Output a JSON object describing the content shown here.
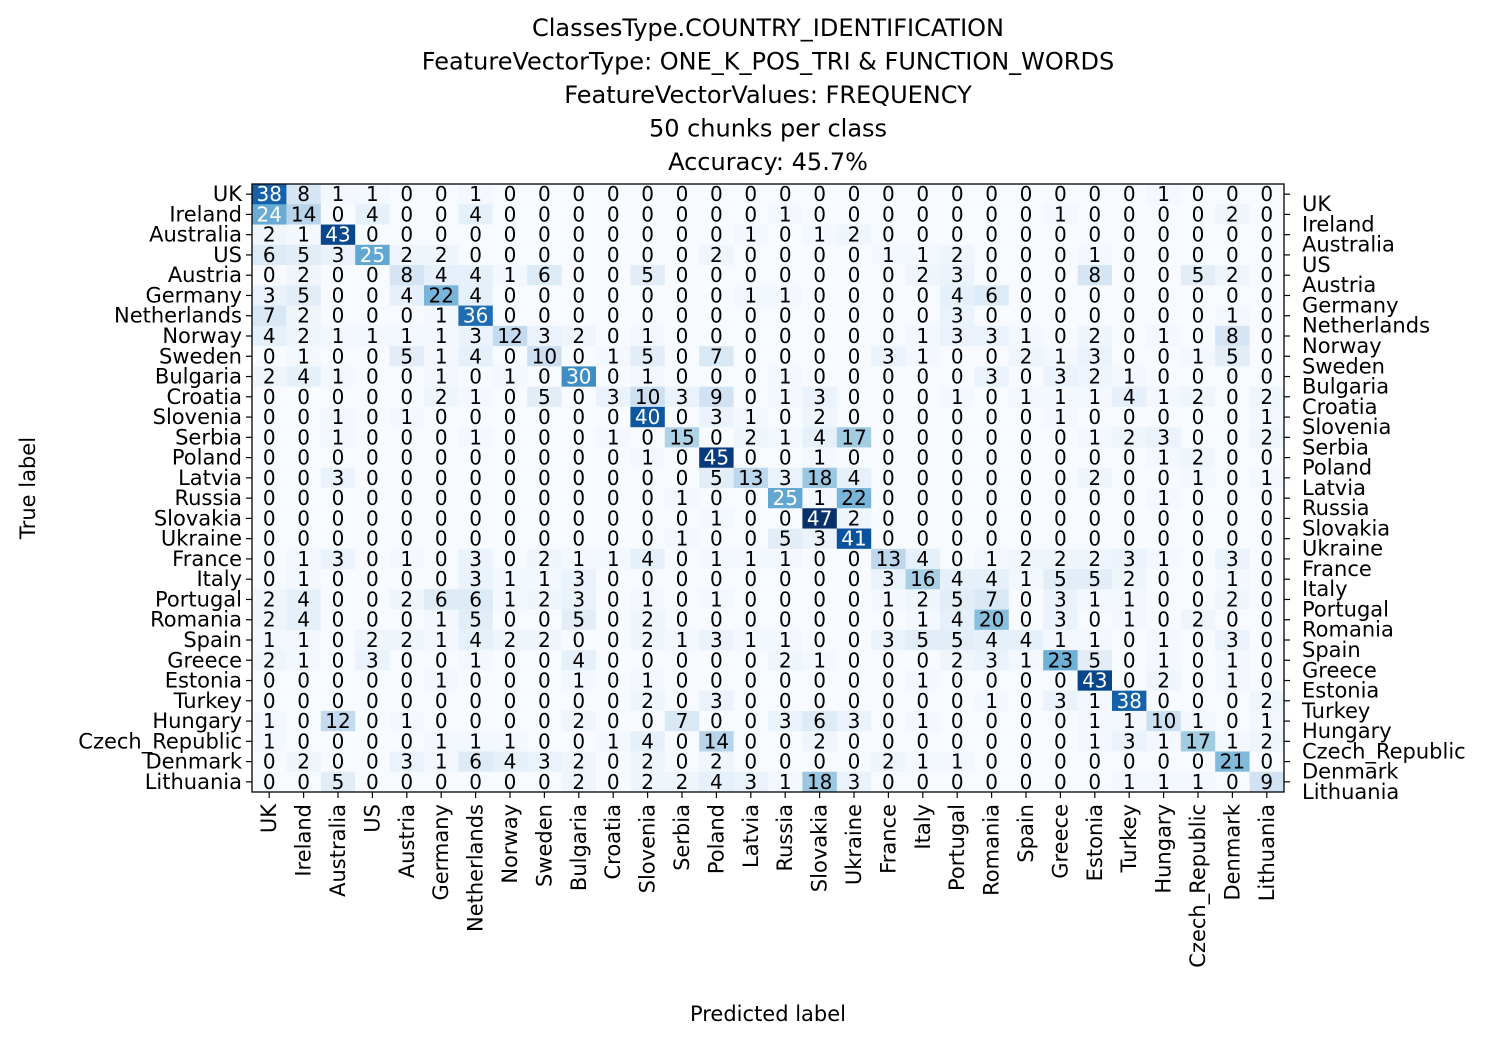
{
  "chart_data": {
    "type": "heatmap",
    "title_lines": [
      "ClassesType.COUNTRY_IDENTIFICATION",
      "FeatureVectorType: ONE_K_POS_TRI & FUNCTION_WORDS",
      "FeatureVectorValues: FREQUENCY",
      "50 chunks per class",
      "Accuracy: 45.7%"
    ],
    "xlabel": "Predicted label",
    "ylabel": "True label",
    "colormap": "Blues",
    "value_range": [
      0,
      47
    ],
    "labels": [
      "UK",
      "Ireland",
      "Australia",
      "US",
      "Austria",
      "Germany",
      "Netherlands",
      "Norway",
      "Sweden",
      "Bulgaria",
      "Croatia",
      "Slovenia",
      "Serbia",
      "Poland",
      "Latvia",
      "Russia",
      "Slovakia",
      "Ukraine",
      "France",
      "Italy",
      "Portugal",
      "Romania",
      "Spain",
      "Greece",
      "Estonia",
      "Turkey",
      "Hungary",
      "Czech_Republic",
      "Denmark",
      "Lithuania"
    ],
    "matrix": [
      [
        38,
        8,
        1,
        1,
        0,
        0,
        1,
        0,
        0,
        0,
        0,
        0,
        0,
        0,
        0,
        0,
        0,
        0,
        0,
        0,
        0,
        0,
        0,
        0,
        0,
        0,
        1,
        0,
        0,
        0
      ],
      [
        24,
        14,
        0,
        4,
        0,
        0,
        4,
        0,
        0,
        0,
        0,
        0,
        0,
        0,
        0,
        1,
        0,
        0,
        0,
        0,
        0,
        0,
        0,
        1,
        0,
        0,
        0,
        0,
        2,
        0
      ],
      [
        2,
        1,
        43,
        0,
        0,
        0,
        0,
        0,
        0,
        0,
        0,
        0,
        0,
        0,
        1,
        0,
        1,
        2,
        0,
        0,
        0,
        0,
        0,
        0,
        0,
        0,
        0,
        0,
        0,
        0
      ],
      [
        6,
        5,
        3,
        25,
        2,
        2,
        0,
        0,
        0,
        0,
        0,
        0,
        0,
        2,
        0,
        0,
        0,
        0,
        1,
        1,
        2,
        0,
        0,
        0,
        1,
        0,
        0,
        0,
        0,
        0
      ],
      [
        0,
        2,
        0,
        0,
        8,
        4,
        4,
        1,
        6,
        0,
        0,
        5,
        0,
        0,
        0,
        0,
        0,
        0,
        0,
        2,
        3,
        0,
        0,
        0,
        8,
        0,
        0,
        5,
        2,
        0
      ],
      [
        3,
        5,
        0,
        0,
        4,
        22,
        4,
        0,
        0,
        0,
        0,
        0,
        0,
        0,
        1,
        1,
        0,
        0,
        0,
        0,
        4,
        6,
        0,
        0,
        0,
        0,
        0,
        0,
        0,
        0
      ],
      [
        7,
        2,
        0,
        0,
        0,
        1,
        36,
        0,
        0,
        0,
        0,
        0,
        0,
        0,
        0,
        0,
        0,
        0,
        0,
        0,
        3,
        0,
        0,
        0,
        0,
        0,
        0,
        0,
        1,
        0
      ],
      [
        4,
        2,
        1,
        1,
        1,
        1,
        3,
        12,
        3,
        2,
        0,
        1,
        0,
        0,
        0,
        0,
        0,
        0,
        0,
        1,
        3,
        3,
        1,
        0,
        2,
        0,
        1,
        0,
        8,
        0
      ],
      [
        0,
        1,
        0,
        0,
        5,
        1,
        4,
        0,
        10,
        0,
        1,
        5,
        0,
        7,
        0,
        0,
        0,
        0,
        3,
        1,
        0,
        0,
        2,
        1,
        3,
        0,
        0,
        1,
        5,
        0
      ],
      [
        2,
        4,
        1,
        0,
        0,
        1,
        0,
        1,
        0,
        30,
        0,
        1,
        0,
        0,
        0,
        1,
        0,
        0,
        0,
        0,
        0,
        3,
        0,
        3,
        2,
        1,
        0,
        0,
        0,
        0
      ],
      [
        0,
        0,
        0,
        0,
        0,
        2,
        1,
        0,
        5,
        0,
        3,
        10,
        3,
        9,
        0,
        1,
        3,
        0,
        0,
        0,
        1,
        0,
        1,
        1,
        1,
        4,
        1,
        2,
        0,
        2
      ],
      [
        0,
        0,
        1,
        0,
        1,
        0,
        0,
        0,
        0,
        0,
        0,
        40,
        0,
        3,
        1,
        0,
        2,
        0,
        0,
        0,
        0,
        0,
        0,
        1,
        0,
        0,
        0,
        0,
        0,
        1
      ],
      [
        0,
        0,
        1,
        0,
        0,
        0,
        1,
        0,
        0,
        0,
        1,
        0,
        15,
        0,
        2,
        1,
        4,
        17,
        0,
        0,
        0,
        0,
        0,
        0,
        1,
        2,
        3,
        0,
        0,
        2
      ],
      [
        0,
        0,
        0,
        0,
        0,
        0,
        0,
        0,
        0,
        0,
        0,
        1,
        0,
        45,
        0,
        0,
        1,
        0,
        0,
        0,
        0,
        0,
        0,
        0,
        0,
        0,
        1,
        2,
        0,
        0
      ],
      [
        0,
        0,
        3,
        0,
        0,
        0,
        0,
        0,
        0,
        0,
        0,
        0,
        0,
        5,
        13,
        3,
        18,
        4,
        0,
        0,
        0,
        0,
        0,
        0,
        2,
        0,
        0,
        1,
        0,
        1
      ],
      [
        0,
        0,
        0,
        0,
        0,
        0,
        0,
        0,
        0,
        0,
        0,
        0,
        1,
        0,
        0,
        25,
        1,
        22,
        0,
        0,
        0,
        0,
        0,
        0,
        0,
        0,
        1,
        0,
        0,
        0
      ],
      [
        0,
        0,
        0,
        0,
        0,
        0,
        0,
        0,
        0,
        0,
        0,
        0,
        0,
        1,
        0,
        0,
        47,
        2,
        0,
        0,
        0,
        0,
        0,
        0,
        0,
        0,
        0,
        0,
        0,
        0
      ],
      [
        0,
        0,
        0,
        0,
        0,
        0,
        0,
        0,
        0,
        0,
        0,
        0,
        1,
        0,
        0,
        5,
        3,
        41,
        0,
        0,
        0,
        0,
        0,
        0,
        0,
        0,
        0,
        0,
        0,
        0
      ],
      [
        0,
        1,
        3,
        0,
        1,
        0,
        3,
        0,
        2,
        1,
        1,
        4,
        0,
        1,
        1,
        1,
        0,
        0,
        13,
        4,
        0,
        1,
        2,
        2,
        2,
        3,
        1,
        0,
        3,
        0
      ],
      [
        0,
        1,
        0,
        0,
        0,
        0,
        3,
        1,
        1,
        3,
        0,
        0,
        0,
        0,
        0,
        0,
        0,
        0,
        3,
        16,
        4,
        4,
        1,
        5,
        5,
        2,
        0,
        0,
        1,
        0
      ],
      [
        2,
        4,
        0,
        0,
        2,
        6,
        6,
        1,
        2,
        3,
        0,
        1,
        0,
        1,
        0,
        0,
        0,
        0,
        1,
        2,
        5,
        7,
        0,
        3,
        1,
        1,
        0,
        0,
        2,
        0
      ],
      [
        2,
        4,
        0,
        0,
        0,
        1,
        5,
        0,
        0,
        5,
        0,
        2,
        0,
        0,
        0,
        0,
        0,
        0,
        0,
        1,
        4,
        20,
        0,
        3,
        0,
        1,
        0,
        2,
        0,
        0
      ],
      [
        1,
        1,
        0,
        2,
        2,
        1,
        4,
        2,
        2,
        0,
        0,
        2,
        1,
        3,
        1,
        1,
        0,
        0,
        3,
        5,
        5,
        4,
        4,
        1,
        1,
        0,
        1,
        0,
        3,
        0
      ],
      [
        2,
        1,
        0,
        3,
        0,
        0,
        1,
        0,
        0,
        4,
        0,
        0,
        0,
        0,
        0,
        2,
        1,
        0,
        0,
        0,
        2,
        3,
        1,
        23,
        5,
        0,
        1,
        0,
        1,
        0
      ],
      [
        0,
        0,
        0,
        0,
        0,
        1,
        0,
        0,
        0,
        1,
        0,
        1,
        0,
        0,
        0,
        0,
        0,
        0,
        0,
        1,
        0,
        0,
        0,
        0,
        43,
        0,
        2,
        0,
        1,
        0
      ],
      [
        0,
        0,
        0,
        0,
        0,
        0,
        0,
        0,
        0,
        0,
        0,
        2,
        0,
        3,
        0,
        0,
        0,
        0,
        0,
        0,
        0,
        1,
        0,
        3,
        1,
        38,
        0,
        0,
        0,
        2
      ],
      [
        1,
        0,
        12,
        0,
        1,
        0,
        0,
        0,
        0,
        2,
        0,
        0,
        7,
        0,
        0,
        3,
        6,
        3,
        0,
        1,
        0,
        0,
        0,
        0,
        1,
        1,
        10,
        1,
        0,
        1
      ],
      [
        1,
        0,
        0,
        0,
        0,
        1,
        1,
        1,
        0,
        0,
        1,
        4,
        0,
        14,
        0,
        0,
        2,
        0,
        0,
        0,
        0,
        0,
        0,
        0,
        1,
        3,
        1,
        17,
        1,
        2
      ],
      [
        0,
        2,
        0,
        0,
        3,
        1,
        6,
        4,
        3,
        2,
        0,
        2,
        0,
        2,
        0,
        0,
        0,
        0,
        2,
        1,
        1,
        0,
        0,
        0,
        0,
        0,
        0,
        0,
        21,
        0
      ],
      [
        0,
        0,
        5,
        0,
        0,
        0,
        0,
        0,
        0,
        2,
        0,
        2,
        2,
        4,
        3,
        1,
        18,
        3,
        0,
        0,
        0,
        0,
        0,
        0,
        0,
        1,
        1,
        1,
        0,
        9
      ]
    ]
  }
}
